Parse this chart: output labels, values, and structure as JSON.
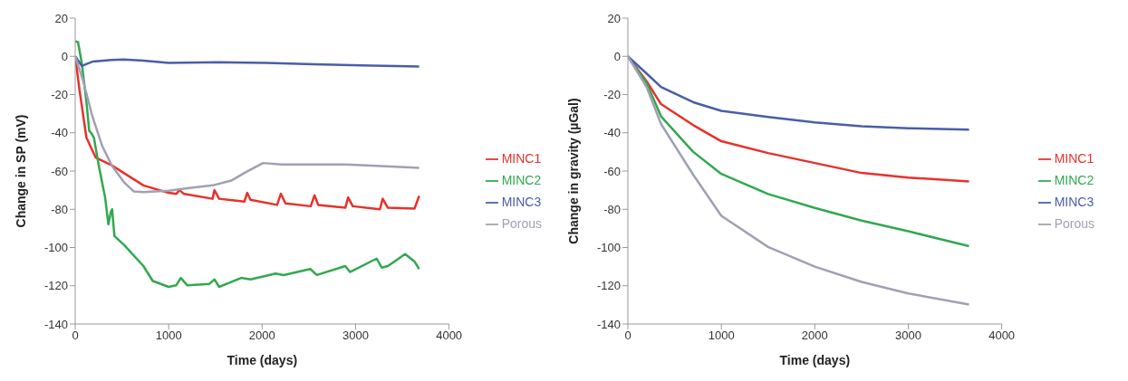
{
  "chart_data": [
    {
      "type": "line",
      "xlabel": "Time (days)",
      "ylabel": "Change in SP (mV)",
      "xlim": [
        0,
        4000
      ],
      "xticks": [
        0,
        1000,
        2000,
        3000,
        4000
      ],
      "ylim": [
        -140,
        20
      ],
      "yticks": [
        -140,
        -120,
        -100,
        -80,
        -60,
        -40,
        -20,
        0,
        20
      ],
      "legend": "right",
      "grid": false,
      "series": [
        {
          "name": "MINC1",
          "color": "#e8312b",
          "x": [
            0,
            50,
            120,
            220,
            390,
            520,
            730,
            1000,
            1080,
            1115,
            1165,
            1470,
            1490,
            1540,
            1810,
            1840,
            1875,
            2160,
            2200,
            2250,
            2520,
            2560,
            2600,
            2890,
            2920,
            2970,
            3260,
            3290,
            3345,
            3630,
            3680
          ],
          "values": [
            0,
            -19,
            -42.5,
            -53,
            -57,
            -61,
            -67.5,
            -71.4,
            -72,
            -70,
            -72,
            -74.5,
            -70,
            -74.5,
            -76,
            -71.4,
            -75,
            -77.7,
            -71.9,
            -76.9,
            -78.4,
            -72.7,
            -77.7,
            -79.2,
            -73.8,
            -78.4,
            -80,
            -74.5,
            -79.2,
            -79.7,
            -73
          ]
        },
        {
          "name": "MINC2",
          "color": "#31a84f",
          "x": [
            0,
            30,
            70,
            120,
            150,
            170,
            200,
            250,
            320,
            355,
            380,
            395,
            420,
            525,
            730,
            830,
            1000,
            1080,
            1130,
            1200,
            1435,
            1490,
            1540,
            1775,
            1875,
            2145,
            2230,
            2515,
            2585,
            2890,
            2940,
            3225,
            3280,
            3345,
            3530,
            3630,
            3680
          ],
          "values": [
            7.8,
            7.5,
            -3.4,
            -23.8,
            -39,
            -40,
            -42.5,
            -56.6,
            -73.8,
            -87.8,
            -81.6,
            -80,
            -94,
            -98.75,
            -109.7,
            -117.5,
            -120.6,
            -119.8,
            -115.9,
            -119.8,
            -119,
            -116.7,
            -120.6,
            -115.9,
            -116.7,
            -113.6,
            -114.4,
            -111.25,
            -114.4,
            -109.7,
            -112.8,
            -105.8,
            -110.5,
            -109.7,
            -103.4,
            -107.3,
            -111.25
          ]
        },
        {
          "name": "MINC3",
          "color": "#4a5ea8",
          "x": [
            0,
            70,
            190,
            390,
            520,
            730,
            1000,
            1540,
            2045,
            2550,
            3060,
            3680
          ],
          "values": [
            0,
            -5,
            -2.7,
            -1.9,
            -1.6,
            -2.2,
            -3.4,
            -3.1,
            -3.4,
            -4.2,
            -4.7,
            -5.3
          ]
        },
        {
          "name": "Porous",
          "color": "#a0a0b4",
          "x": [
            0,
            85,
            185,
            290,
            390,
            525,
            625,
            730,
            1000,
            1200,
            1470,
            1670,
            1810,
            2010,
            2210,
            2550,
            2890,
            3225,
            3680
          ],
          "values": [
            0,
            -12.8,
            -31.6,
            -47,
            -57,
            -66,
            -70.6,
            -71,
            -70.3,
            -69,
            -67.5,
            -65,
            -61,
            -55.8,
            -56.6,
            -56.6,
            -56.6,
            -57.3,
            -58.4
          ]
        }
      ]
    },
    {
      "type": "line",
      "xlabel": "Time (days)",
      "ylabel": "Change in gravity (µGal)",
      "xlim": [
        0,
        4000
      ],
      "xticks": [
        0,
        1000,
        2000,
        3000,
        4000
      ],
      "ylim": [
        -140,
        20
      ],
      "yticks": [
        -140,
        -120,
        -100,
        -80,
        -60,
        -40,
        -20,
        0,
        20
      ],
      "legend": "right",
      "grid": false,
      "x": [
        0,
        200,
        355,
        700,
        1000,
        1500,
        2000,
        2500,
        3000,
        3650
      ],
      "series": [
        {
          "name": "MINC1",
          "color": "#e8312b",
          "values": [
            0,
            -13,
            -25,
            -36,
            -44.4,
            -50.6,
            -55.8,
            -61,
            -63.4,
            -65.5
          ]
        },
        {
          "name": "MINC2",
          "color": "#31a84f",
          "values": [
            0,
            -14,
            -31.4,
            -50,
            -61.5,
            -72,
            -79.3,
            -85.9,
            -91.5,
            -99.3
          ]
        },
        {
          "name": "MINC3",
          "color": "#4a5ea8",
          "values": [
            0,
            -9,
            -16,
            -24,
            -28.5,
            -31.7,
            -34.6,
            -36.6,
            -37.6,
            -38.4
          ]
        },
        {
          "name": "Porous",
          "color": "#a0a0b4",
          "values": [
            0,
            -16,
            -35.4,
            -62,
            -83.4,
            -99.7,
            -110,
            -118,
            -124,
            -129.8
          ]
        }
      ]
    }
  ]
}
